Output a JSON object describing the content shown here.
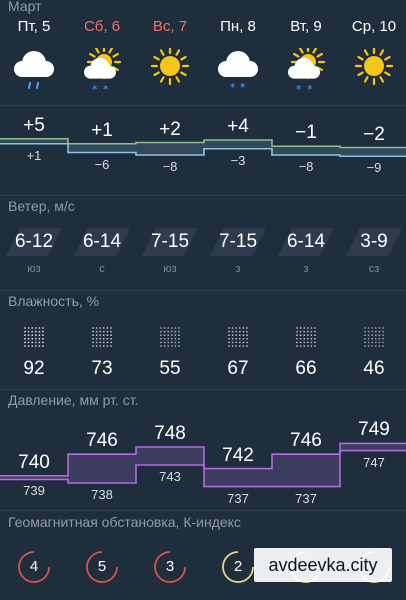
{
  "header": {
    "month": "Март"
  },
  "days": [
    {
      "label": "Пт, 5",
      "weekend": false,
      "icon": "cloud-rain-icon"
    },
    {
      "label": "Сб, 6",
      "weekend": true,
      "icon": "partly-cloudy-snow-icon"
    },
    {
      "label": "Вс, 7",
      "weekend": true,
      "icon": "sun-icon"
    },
    {
      "label": "Пн, 8",
      "weekend": false,
      "icon": "cloud-snow-icon"
    },
    {
      "label": "Вт, 9",
      "weekend": false,
      "icon": "partly-cloudy-snow-icon"
    },
    {
      "label": "Ср, 10",
      "weekend": false,
      "icon": "sun-icon"
    }
  ],
  "temperature": {
    "day": [
      "+5",
      "+1",
      "+2",
      "+4",
      "−1",
      "−2"
    ],
    "night": [
      "+1",
      "−6",
      "−8",
      "−3",
      "−8",
      "−9"
    ],
    "day_values": [
      5,
      1,
      2,
      4,
      -1,
      -2
    ],
    "night_values": [
      1,
      -6,
      -8,
      -3,
      -8,
      -9
    ]
  },
  "wind": {
    "title": "Ветер, м/с",
    "speeds": [
      "6-12",
      "6-14",
      "7-15",
      "7-15",
      "6-14",
      "3-9"
    ],
    "directions": [
      "юз",
      "с",
      "юз",
      "з",
      "з",
      "сз"
    ]
  },
  "humidity": {
    "title": "Влажность, %",
    "values": [
      "92",
      "73",
      "55",
      "67",
      "66",
      "46"
    ]
  },
  "pressure": {
    "title": "Давление, мм рт. ст.",
    "day": [
      "740",
      "746",
      "748",
      "742",
      "746",
      "749"
    ],
    "night": [
      "739",
      "738",
      "743",
      "737",
      "737",
      "747"
    ],
    "day_values": [
      740,
      746,
      748,
      742,
      746,
      749
    ],
    "night_values": [
      739,
      738,
      743,
      737,
      737,
      747
    ]
  },
  "geomagnetic": {
    "title": "Геомагнитная обстановка, К-индекс",
    "values": [
      "4",
      "5",
      "3",
      "2",
      "",
      ""
    ],
    "colors": [
      "#d9534f",
      "#d9534f",
      "#d9534f",
      "#e8d48a",
      "#e8d48a",
      "#e8d48a"
    ]
  },
  "watermark": {
    "text": "avdeevka.city"
  },
  "colors": {
    "background": "#1f2e3d",
    "temp_day_line": "#8fbf8f",
    "temp_night_line": "#8ec3e6",
    "pressure_line": "#b469e0",
    "weekend": "#f2726b",
    "sun": "#f5c518",
    "snow": "#4aa3ff"
  }
}
